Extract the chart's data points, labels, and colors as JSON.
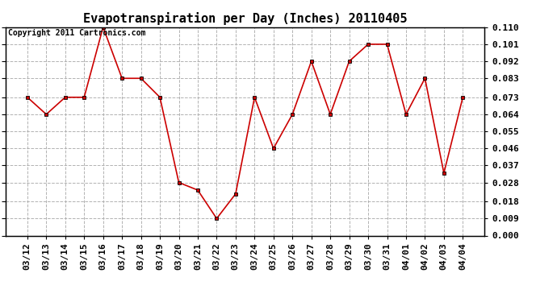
{
  "title": "Evapotranspiration per Day (Inches) 20110405",
  "copyright": "Copyright 2011 Cartronics.com",
  "dates": [
    "03/12",
    "03/13",
    "03/14",
    "03/15",
    "03/16",
    "03/17",
    "03/18",
    "03/19",
    "03/20",
    "03/21",
    "03/22",
    "03/23",
    "03/24",
    "03/25",
    "03/26",
    "03/27",
    "03/28",
    "03/29",
    "03/30",
    "03/31",
    "04/01",
    "04/02",
    "04/03",
    "04/04"
  ],
  "values": [
    0.073,
    0.064,
    0.073,
    0.073,
    0.11,
    0.083,
    0.083,
    0.073,
    0.028,
    0.024,
    0.009,
    0.022,
    0.073,
    0.046,
    0.064,
    0.092,
    0.064,
    0.092,
    0.101,
    0.101,
    0.064,
    0.083,
    0.033,
    0.073
  ],
  "line_color": "#CC0000",
  "marker": "s",
  "marker_size": 3,
  "ylim": [
    0.0,
    0.11
  ],
  "yticks": [
    0.0,
    0.009,
    0.018,
    0.028,
    0.037,
    0.046,
    0.055,
    0.064,
    0.073,
    0.083,
    0.092,
    0.101,
    0.11
  ],
  "background_color": "#ffffff",
  "grid_color": "#aaaaaa",
  "title_fontsize": 11,
  "tick_fontsize": 8,
  "copyright_fontsize": 7
}
